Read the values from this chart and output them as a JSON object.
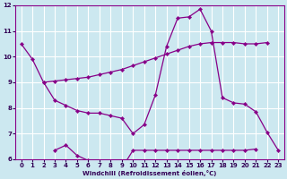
{
  "xlabel": "Windchill (Refroidissement éolien,°C)",
  "background_color": "#cce8f0",
  "grid_color": "#ffffff",
  "line_color": "#880088",
  "xlim": [
    -0.5,
    23.5
  ],
  "ylim": [
    6,
    12
  ],
  "xticks": [
    0,
    1,
    2,
    3,
    4,
    5,
    6,
    7,
    8,
    9,
    10,
    11,
    12,
    13,
    14,
    15,
    16,
    17,
    18,
    19,
    20,
    21,
    22,
    23
  ],
  "yticks": [
    6,
    7,
    8,
    9,
    10,
    11,
    12
  ],
  "line1_x": [
    0,
    1,
    2,
    3,
    4,
    5,
    6,
    7,
    8,
    9,
    10,
    11,
    12,
    13,
    14,
    15,
    16,
    17,
    18,
    19,
    20,
    21,
    22,
    23
  ],
  "line1_y": [
    10.5,
    9.9,
    9.0,
    8.3,
    8.1,
    7.9,
    7.8,
    7.8,
    7.7,
    7.6,
    7.0,
    7.35,
    8.5,
    10.4,
    11.5,
    11.55,
    11.85,
    11.0,
    8.4,
    8.2,
    8.15,
    7.85,
    7.05,
    6.35
  ],
  "line2_x": [
    2,
    3,
    4,
    5,
    6,
    7,
    8,
    9,
    10,
    11,
    12,
    13,
    14,
    15,
    16,
    17,
    18,
    19,
    20,
    21,
    22
  ],
  "line2_y": [
    9.0,
    9.05,
    9.1,
    9.15,
    9.2,
    9.3,
    9.4,
    9.5,
    9.65,
    9.8,
    9.95,
    10.1,
    10.25,
    10.4,
    10.5,
    10.55,
    10.55,
    10.55,
    10.5,
    10.5,
    10.55
  ],
  "line3_x": [
    3,
    4,
    5,
    6,
    7,
    8,
    9,
    10,
    11,
    12,
    13,
    14,
    15,
    16,
    17,
    18,
    19,
    20,
    21
  ],
  "line3_y": [
    6.35,
    6.55,
    6.15,
    5.95,
    5.75,
    5.75,
    5.65,
    6.35,
    6.35,
    6.35,
    6.35,
    6.35,
    6.35,
    6.35,
    6.35,
    6.35,
    6.35,
    6.35,
    6.4
  ]
}
